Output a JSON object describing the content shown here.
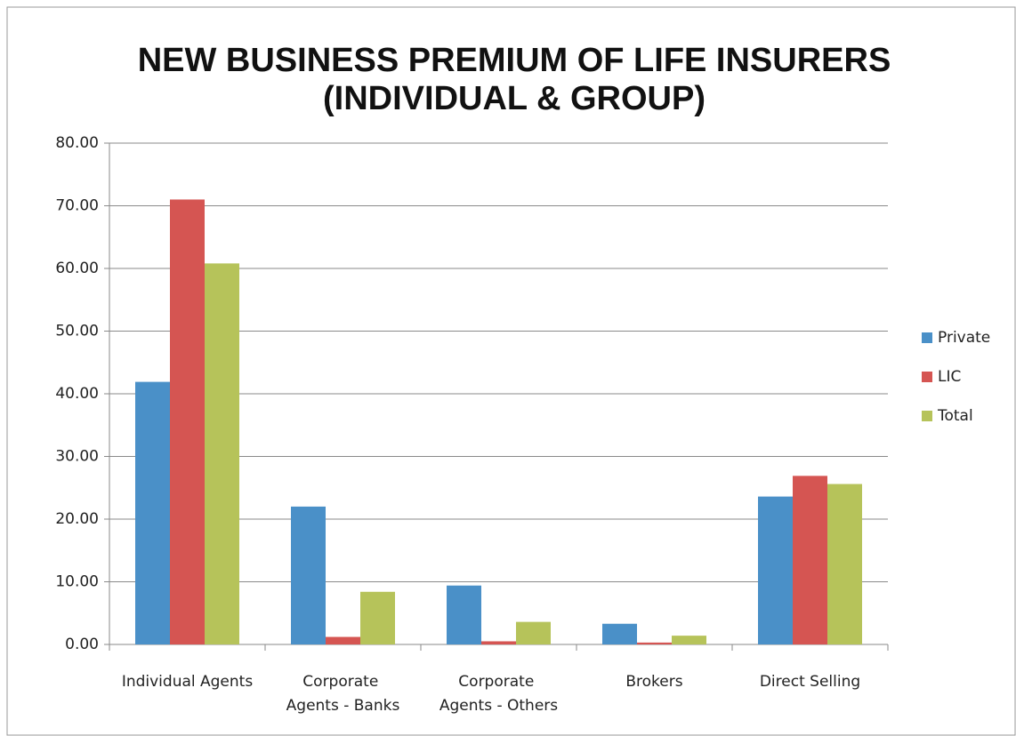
{
  "chart_data": {
    "type": "bar",
    "title": "NEW BUSINESS PREMIUM OF LIFE INSURERS",
    "subtitle": "(INDIVIDUAL & GROUP)",
    "categories": [
      "Individual Agents",
      "Corporate Agents - Banks",
      "Corporate Agents - Others",
      "Brokers",
      "Direct Selling"
    ],
    "series": [
      {
        "name": "Private",
        "color": "#4a90c8",
        "values": [
          41.9,
          22.0,
          9.4,
          3.3,
          23.6
        ]
      },
      {
        "name": "LIC",
        "color": "#d55552",
        "values": [
          71.0,
          1.2,
          0.5,
          0.3,
          26.9
        ]
      },
      {
        "name": "Total",
        "color": "#b6c35a",
        "values": [
          60.8,
          8.4,
          3.6,
          1.4,
          25.6
        ]
      }
    ],
    "ylim": [
      0,
      80
    ],
    "yticks": [
      {
        "value": 0,
        "label": "0.00"
      },
      {
        "value": 10,
        "label": "10.00"
      },
      {
        "value": 20,
        "label": "20.00"
      },
      {
        "value": 30,
        "label": "30.00"
      },
      {
        "value": 40,
        "label": "40.00"
      },
      {
        "value": 50,
        "label": "50.00"
      },
      {
        "value": 60,
        "label": "60.00"
      },
      {
        "value": 70,
        "label": "70.00"
      },
      {
        "value": 80,
        "label": "80.00"
      }
    ],
    "grid": true,
    "legend": "right"
  }
}
